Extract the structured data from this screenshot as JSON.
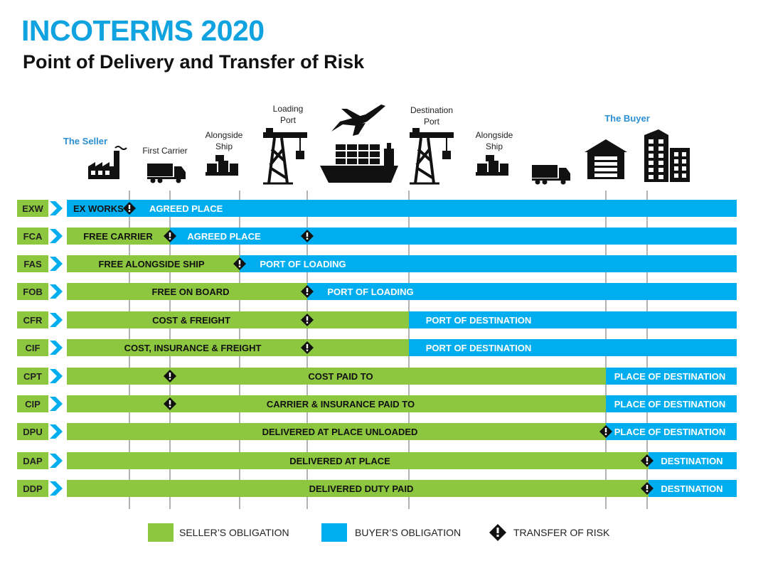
{
  "header": {
    "title": "INCOTERMS 2020",
    "subtitle": "Point of Delivery and Transfer of Risk"
  },
  "colors": {
    "seller": "#8dc63f",
    "buyer": "#00aeef",
    "code_box": "#8dc63f",
    "chevron": "#00aeef",
    "title": "#11a3e0",
    "seller_label": "#2b8fd4"
  },
  "locations": [
    {
      "id": "seller",
      "label": "The Seller",
      "icon": "factory-icon"
    },
    {
      "id": "first-carrier",
      "label": "First Carrier",
      "icon": "truck-icon"
    },
    {
      "id": "alongside-origin",
      "label": "Alongside Ship",
      "icon": "boxes-icon"
    },
    {
      "id": "loading-port",
      "label": "Loading Port",
      "icon": "crane-icon"
    },
    {
      "id": "transport",
      "label": "",
      "icon": "plane-and-ship-icon"
    },
    {
      "id": "destination-port",
      "label": "Destination Port",
      "icon": "crane-icon"
    },
    {
      "id": "alongside-destination",
      "label": "Alongside Ship",
      "icon": "boxes-icon"
    },
    {
      "id": "truck-destination",
      "label": "",
      "icon": "truck-icon"
    },
    {
      "id": "warehouse",
      "label": "",
      "icon": "warehouse-icon"
    },
    {
      "id": "buyer",
      "label": "The Buyer",
      "icon": "buildings-icon"
    }
  ],
  "terms": [
    {
      "code": "EXW",
      "seller_text": "EX WORKS",
      "buyer_text": "AGREED PLACE"
    },
    {
      "code": "FCA",
      "seller_text": "FREE CARRIER",
      "buyer_text": "AGREED PLACE"
    },
    {
      "code": "FAS",
      "seller_text": "FREE ALONGSIDE SHIP",
      "buyer_text": "PORT OF LOADING"
    },
    {
      "code": "FOB",
      "seller_text": "FREE  ON BOARD",
      "buyer_text": "PORT OF LOADING"
    },
    {
      "code": "CFR",
      "seller_text": "COST & FREIGHT",
      "buyer_text": "PORT OF DESTINATION"
    },
    {
      "code": "CIF",
      "seller_text": "COST, INSURANCE & FREIGHT",
      "buyer_text": "PORT OF DESTINATION"
    },
    {
      "code": "CPT",
      "seller_text": "COST PAID TO",
      "buyer_text": "PLACE OF DESTINATION"
    },
    {
      "code": "CIP",
      "seller_text": "CARRIER & INSURANCE PAID TO",
      "buyer_text": "PLACE OF DESTINATION"
    },
    {
      "code": "DPU",
      "seller_text": "DELIVERED AT PLACE UNLOADED",
      "buyer_text": "PLACE OF DESTINATION"
    },
    {
      "code": "DAP",
      "seller_text": "DELIVERED AT PLACE",
      "buyer_text": "DESTINATION"
    },
    {
      "code": "DDP",
      "seller_text": "DELIVERED DUTY PAID",
      "buyer_text": "DESTINATION"
    }
  ],
  "legend": [
    {
      "id": "seller",
      "label": "SELLER’S OBLIGATION",
      "icon": "green-swatch"
    },
    {
      "id": "buyer",
      "label": "BUYER’S OBLIGATION",
      "icon": "blue-swatch"
    },
    {
      "id": "risk",
      "label": "TRANSFER OF RISK",
      "icon": "risk-diamond-icon"
    }
  ]
}
